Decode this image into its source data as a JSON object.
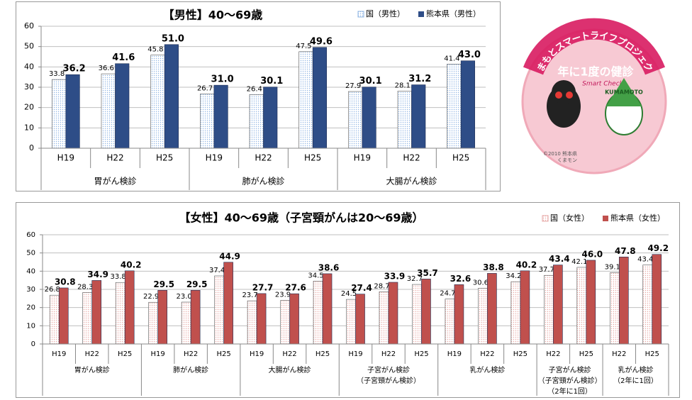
{
  "chart_data": [
    {
      "type": "bar",
      "title": "【男性】40～69歳",
      "groups": [
        {
          "label": [
            "胃がん検診"
          ],
          "categories": [
            "H19",
            "H22",
            "H25"
          ]
        },
        {
          "label": [
            "肺がん検診"
          ],
          "categories": [
            "H19",
            "H22",
            "H25"
          ]
        },
        {
          "label": [
            "大腸がん検診"
          ],
          "categories": [
            "H19",
            "H22",
            "H25"
          ]
        }
      ],
      "series": [
        {
          "name": "国（男性）",
          "color": "#8eb4e3",
          "pattern": "dots",
          "values": [
            33.8,
            36.6,
            45.8,
            26.7,
            26.4,
            47.5,
            27.9,
            28.1,
            41.4
          ],
          "value_labels": [
            "33.8",
            "36.6",
            "45.8",
            "26.7",
            "26.4",
            "47.5",
            "27.9",
            "28.1",
            "41.4"
          ]
        },
        {
          "name": "熊本県（男性）",
          "color": "#2e4d87",
          "values": [
            36.2,
            41.6,
            51.0,
            31.0,
            30.1,
            49.6,
            30.1,
            31.2,
            43.0
          ],
          "value_labels": [
            "36.2",
            "41.6",
            "51.0",
            "31.0",
            "30.1",
            "49.6",
            "30.1",
            "31.2",
            "43.0"
          ]
        }
      ],
      "ylim": [
        0,
        60
      ],
      "yticks": [
        0,
        10,
        20,
        30,
        40,
        50,
        60
      ],
      "grid": true
    },
    {
      "type": "bar",
      "title": "【女性】40～69歳（子宮頸がんは20～69歳）",
      "groups": [
        {
          "label": [
            "胃がん検診"
          ],
          "categories": [
            "H19",
            "H22",
            "H25"
          ]
        },
        {
          "label": [
            "肺がん検診"
          ],
          "categories": [
            "H19",
            "H22",
            "H25"
          ]
        },
        {
          "label": [
            "大腸がん検診"
          ],
          "categories": [
            "H19",
            "H22",
            "H25"
          ]
        },
        {
          "label": [
            "子宮がん検診",
            "（子宮頸がん検診）"
          ],
          "categories": [
            "H19",
            "H22",
            "H25"
          ]
        },
        {
          "label": [
            "乳がん検診"
          ],
          "categories": [
            "H19",
            "H22",
            "H25"
          ]
        },
        {
          "label": [
            "子宮がん検診",
            "（子宮頸がん検診）",
            "（2年に1回）"
          ],
          "categories": [
            "H22",
            "H25"
          ]
        },
        {
          "label": [
            "乳がん検診",
            "（2年に1回）"
          ],
          "categories": [
            "H22",
            "H25"
          ]
        }
      ],
      "series": [
        {
          "name": "国（女性）",
          "color": "#e6a5a3",
          "pattern": "dots",
          "values": [
            26.8,
            28.3,
            33.8,
            22.9,
            23.0,
            37.4,
            23.7,
            23.9,
            34.5,
            24.5,
            28.7,
            32.7,
            24.7,
            30.6,
            34.2,
            37.7,
            42.1,
            39.1,
            43.4
          ],
          "value_labels": [
            "26.8",
            "28.3",
            "33.8",
            "22.9",
            "23.0",
            "37.4",
            "23.7",
            "23.9",
            "34.5",
            "24.5",
            "28.7",
            "32.7",
            "24.7",
            "30.6",
            "34.2",
            "37.7",
            "42.1",
            "39.1",
            "43.4"
          ]
        },
        {
          "name": "熊本県（女性）",
          "color": "#c0504d",
          "values": [
            30.8,
            34.9,
            40.2,
            29.5,
            29.5,
            44.9,
            27.7,
            27.6,
            38.6,
            27.4,
            33.9,
            35.7,
            32.6,
            38.8,
            40.2,
            43.4,
            46.0,
            47.8,
            49.2
          ],
          "value_labels": [
            "30.8",
            "34.9",
            "40.2",
            "29.5",
            "29.5",
            "44.9",
            "27.7",
            "27.6",
            "38.6",
            "27.4",
            "33.9",
            "35.7",
            "32.6",
            "38.8",
            "40.2",
            "43.4",
            "46.0",
            "47.8",
            "49.2"
          ]
        }
      ],
      "ylim": [
        0,
        60
      ],
      "yticks": [
        0,
        10,
        20,
        30,
        40,
        50,
        60
      ],
      "grid": true
    }
  ],
  "logo": {
    "arc_text": "くまもとスマートライフプロジェクト",
    "main": "年に1度の健診",
    "sub": "Smart Check",
    "band": "KUMAMOTO",
    "copyright": "©2010 熊本県",
    "copyright2": "くまモン"
  }
}
